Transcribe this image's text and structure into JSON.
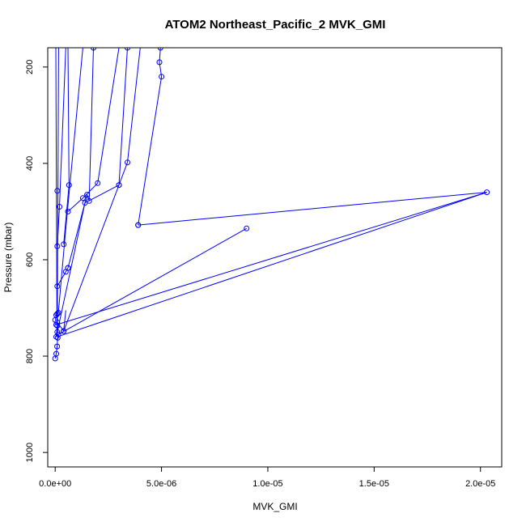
{
  "chart_data": {
    "type": "line",
    "title": "ATOM2 Northeast_Pacific_2 MVK_GMI",
    "xlabel": "MVK_GMI",
    "ylabel": "Pressure (mbar)",
    "xlim": [
      -3.5e-07,
      2.1e-05
    ],
    "ylim": [
      1030,
      160
    ],
    "y_reversed": true,
    "x_ticks": [
      0,
      5e-06,
      1e-05,
      1.5e-05,
      2e-05
    ],
    "x_tick_labels": [
      "0.0e+00",
      "5.0e-06",
      "1.0e-05",
      "1.5e-05",
      "2.0e-05"
    ],
    "y_ticks": [
      200,
      400,
      600,
      800,
      1000
    ],
    "y_tick_labels": [
      "200",
      "400",
      "600",
      "800",
      "1000"
    ],
    "grid": false,
    "legend": "none",
    "series_color": "#0000ff",
    "series": [
      {
        "x": [
          0,
          5e-08,
          9e-08,
          1.2e-07
        ],
        "y": [
          805,
          795,
          780,
          762
        ],
        "markers": true
      },
      {
        "x": [
          1.2e-07,
          8e-08,
          3e-08
        ],
        "y": [
          762,
          712,
          160
        ],
        "markers": false
      },
      {
        "x": [
          5e-08,
          1e-07
        ],
        "y": [
          760,
          737
        ],
        "markers": true
      },
      {
        "x": [
          1e-07,
          1.6e-07
        ],
        "y": [
          737,
          160
        ],
        "markers": false
      },
      {
        "x": [
          0,
          5e-08,
          1e-07,
          1.5e-07
        ],
        "y": [
          725,
          715,
          712,
          710
        ],
        "markers": true
      },
      {
        "x": [
          1.5e-07,
          5e-07,
          1.3e-06
        ],
        "y": [
          710,
          535,
          160
        ],
        "markers": false
      },
      {
        "x": [
          4e-07,
          1e-07
        ],
        "y": [
          748,
          730
        ],
        "markers": true
      },
      {
        "x": [
          4e-07,
          3e-06,
          3.4e-06
        ],
        "y": [
          748,
          445,
          160
        ],
        "markers": true
      },
      {
        "x": [
          4e-07,
          5e-07
        ],
        "y": [
          748,
          705
        ],
        "markers": false
      },
      {
        "x": [
          1e-07,
          5e-07,
          6e-07
        ],
        "y": [
          655,
          625,
          617
        ],
        "markers": true
      },
      {
        "x": [
          6e-07,
          1.5e-06,
          1.6e-06,
          1.8e-06
        ],
        "y": [
          617,
          465,
          478,
          160
        ],
        "markers": true
      },
      {
        "x": [
          1e-07,
          2e-07
        ],
        "y": [
          572,
          490
        ],
        "markers": true
      },
      {
        "x": [
          2e-07,
          5e-07
        ],
        "y": [
          490,
          160
        ],
        "markers": false
      },
      {
        "x": [
          1e-07
        ],
        "y": [
          457
        ],
        "markers": true
      },
      {
        "x": [
          4e-07,
          6.5e-07
        ],
        "y": [
          568,
          445
        ],
        "markers": true
      },
      {
        "x": [
          6.5e-07,
          6e-07
        ],
        "y": [
          445,
          160
        ],
        "markers": false
      },
      {
        "x": [
          6e-07,
          1.3e-06,
          2e-06
        ],
        "y": [
          500,
          472,
          441
        ],
        "markers": true
      },
      {
        "x": [
          2e-06,
          3e-06
        ],
        "y": [
          441,
          160
        ],
        "markers": false
      },
      {
        "x": [
          1e-07,
          1.4e-06,
          3e-06,
          3.4e-06
        ],
        "y": [
          750,
          482,
          445,
          398
        ],
        "markers": true
      },
      {
        "x": [
          3.4e-06,
          4e-06
        ],
        "y": [
          398,
          160
        ],
        "markers": false
      },
      {
        "x": [
          5e-08,
          2.03e-05,
          3.9e-06
        ],
        "y": [
          735,
          460,
          528
        ],
        "markers": true
      },
      {
        "x": [
          3.9e-06,
          5e-06,
          4.9e-06,
          4.95e-06
        ],
        "y": [
          528,
          220,
          190,
          160
        ],
        "markers": true
      },
      {
        "x": [
          1.5e-07,
          9e-06
        ],
        "y": [
          755,
          535
        ],
        "markers": true
      },
      {
        "x": [
          1e-07,
          2.03e-05
        ],
        "y": [
          760,
          460
        ],
        "markers": false
      }
    ]
  }
}
